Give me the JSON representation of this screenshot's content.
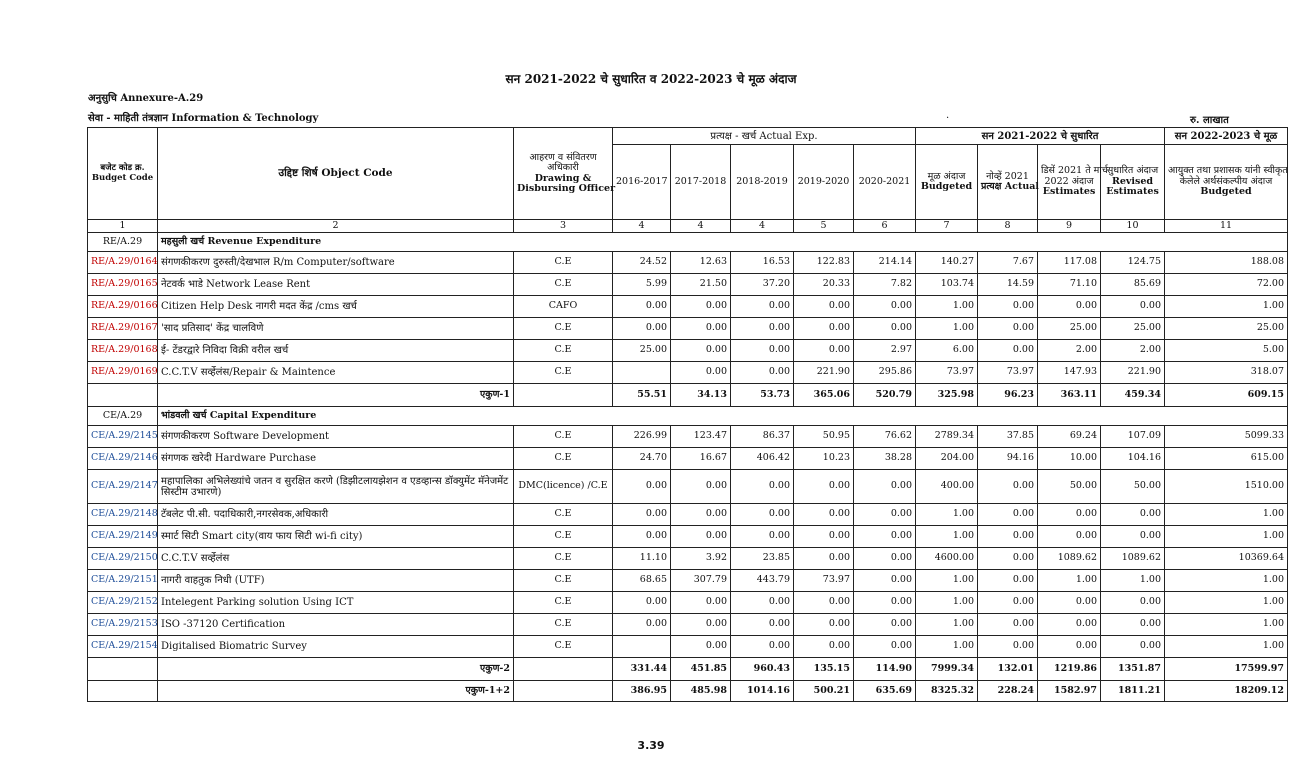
{
  "title": "सन 2021-2022 चे सुधारित व 2022-2023 चे मूळ अंदाज",
  "annexure": "अनुसुचि Annexure-A.29",
  "seva": "सेवा - माहिती तंत्रज्ञान Information & Technology",
  "dot": ".",
  "unit": "रु. लाखात",
  "headers": {
    "budget_code_mr": "बजेट कोड क्र.",
    "budget_code_en": "Budget Code",
    "object_code": "उद्दिष्ट शिर्ष Object Code",
    "ddo_1": "आहरण व संवितरण",
    "ddo_2": "अधिकारी",
    "ddo_3": "Drawing &",
    "ddo_4": "Disbursing  Officer",
    "actual_exp": "प्रत्यक्ष - खर्च Actual Exp.",
    "revised_group": "सन 2021-2022 चे सुधारित",
    "original_group": "सन 2022-2023 चे मूळ",
    "y2016": "2016-2017",
    "y2017": "2017-2018",
    "y2018": "2018-2019",
    "y2019": "2019-2020",
    "y2020": "2020-2021",
    "budgeted_1": "मूळ अंदाज",
    "budgeted_2": "Budgeted",
    "nov_1": "नोव्हें 2021",
    "nov_2": "प्रत्यक्ष  Actual",
    "dec_1": "डिसें 2021 ते मार्च",
    "dec_2": "2022 अंदाज",
    "dec_3": "Estimates",
    "rev_1": "सुधारित अंदाज",
    "rev_2": "Revised",
    "rev_3": "Estimates",
    "orig_1": "आयुक्त तथा प्रशासक यांनी स्वीकृत",
    "orig_2": "केलेले अर्थसंकल्पीय अंदाज",
    "orig_3": "Budgeted",
    "colnums": [
      "1",
      "2",
      "3",
      "4",
      "4",
      "4",
      "5",
      "6",
      "7",
      "8",
      "9",
      "10",
      "11"
    ]
  },
  "revenue": {
    "code": "RE/A.29",
    "title": "महसुली खर्च Revenue Expenditure",
    "rows": [
      {
        "code": "RE/A.29/0164",
        "desc": "संगणकीकरण दुरुस्ती/देखभाल R/m Computer/software",
        "ddo": "C.E",
        "v": [
          "24.52",
          "12.63",
          "16.53",
          "122.83",
          "214.14",
          "140.27",
          "7.67",
          "117.08",
          "124.75",
          "188.08"
        ]
      },
      {
        "code": "RE/A.29/0165",
        "desc": "नेटवर्क भाडे Network Lease Rent",
        "ddo": "C.E",
        "v": [
          "5.99",
          "21.50",
          "37.20",
          "20.33",
          "7.82",
          "103.74",
          "14.59",
          "71.10",
          "85.69",
          "72.00"
        ]
      },
      {
        "code": "RE/A.29/0166",
        "desc": "Citizen Help Desk नागरी मदत केंद्र /cms खर्च",
        "ddo": "CAFO",
        "v": [
          "0.00",
          "0.00",
          "0.00",
          "0.00",
          "0.00",
          "1.00",
          "0.00",
          "0.00",
          "0.00",
          "1.00"
        ]
      },
      {
        "code": "RE/A.29/0167",
        "desc": "'साद प्रतिसाद' केंद्र चालविणे",
        "ddo": "C.E",
        "v": [
          "0.00",
          "0.00",
          "0.00",
          "0.00",
          "0.00",
          "1.00",
          "0.00",
          "25.00",
          "25.00",
          "25.00"
        ]
      },
      {
        "code": "RE/A.29/0168",
        "desc": "ई- टेंडरद्वारे निविदा विक्री वरील खर्च",
        "ddo": "C.E",
        "v": [
          "25.00",
          "0.00",
          "0.00",
          "0.00",
          "2.97",
          "6.00",
          "0.00",
          "2.00",
          "2.00",
          "5.00"
        ]
      },
      {
        "code": "RE/A.29/0169",
        "desc": "C.C.T.V सर्व्हेलंस/Repair & Maintence",
        "ddo": "C.E",
        "v": [
          "",
          "0.00",
          "0.00",
          "221.90",
          "295.86",
          "73.97",
          "73.97",
          "147.93",
          "221.90",
          "318.07"
        ]
      }
    ],
    "total_label": "एकुण-1",
    "total": [
      "55.51",
      "34.13",
      "53.73",
      "365.06",
      "520.79",
      "325.98",
      "96.23",
      "363.11",
      "459.34",
      "609.15"
    ]
  },
  "capital": {
    "code": "CE/A.29",
    "title": "भांडवली खर्च Capital Expenditure",
    "rows": [
      {
        "code": "CE/A.29/2145",
        "desc": "संगणकीकरण Software Development",
        "ddo": "C.E",
        "v": [
          "226.99",
          "123.47",
          "86.37",
          "50.95",
          "76.62",
          "2789.34",
          "37.85",
          "69.24",
          "107.09",
          "5099.33"
        ]
      },
      {
        "code": "CE/A.29/2146",
        "desc": "संगणक खरेदी Hardware Purchase",
        "ddo": "C.E",
        "v": [
          "24.70",
          "16.67",
          "406.42",
          "10.23",
          "38.28",
          "204.00",
          "94.16",
          "10.00",
          "104.16",
          "615.00"
        ]
      },
      {
        "code": "CE/A.29/2147",
        "desc": "महापालिका अभिलेख्यांचे जतन व सुरक्षित करणे (डिझीटलायझेशन व एडव्हान्स डॉक्युमेंट मॅनेजमेंट सिस्टीम उभारणे)",
        "ddo": "DMC(licence) /C.E",
        "v": [
          "0.00",
          "0.00",
          "0.00",
          "0.00",
          "0.00",
          "400.00",
          "0.00",
          "50.00",
          "50.00",
          "1510.00"
        ]
      },
      {
        "code": "CE/A.29/2148",
        "desc": "टॅबलेट पी.सी. पदाधिकारी,नगरसेवक,अधिकारी",
        "ddo": "C.E",
        "v": [
          "0.00",
          "0.00",
          "0.00",
          "0.00",
          "0.00",
          "1.00",
          "0.00",
          "0.00",
          "0.00",
          "1.00"
        ]
      },
      {
        "code": "CE/A.29/2149",
        "desc": "स्मार्ट सिटी  Smart city(वाय फाय सिटी wi-fi city)",
        "ddo": "C.E",
        "v": [
          "0.00",
          "0.00",
          "0.00",
          "0.00",
          "0.00",
          "1.00",
          "0.00",
          "0.00",
          "0.00",
          "1.00"
        ]
      },
      {
        "code": "CE/A.29/2150",
        "desc": "C.C.T.V सर्व्हेलंस",
        "ddo": "C.E",
        "v": [
          "11.10",
          "3.92",
          "23.85",
          "0.00",
          "0.00",
          "4600.00",
          "0.00",
          "1089.62",
          "1089.62",
          "10369.64"
        ]
      },
      {
        "code": "CE/A.29/2151",
        "desc": "नागरी वाहतुक निधी (UTF)",
        "ddo": "C.E",
        "v": [
          "68.65",
          "307.79",
          "443.79",
          "73.97",
          "0.00",
          "1.00",
          "0.00",
          "1.00",
          "1.00",
          "1.00"
        ]
      },
      {
        "code": "CE/A.29/2152",
        "desc": "Intelegent Parking solution Using ICT",
        "ddo": "C.E",
        "v": [
          "0.00",
          "0.00",
          "0.00",
          "0.00",
          "0.00",
          "1.00",
          "0.00",
          "0.00",
          "0.00",
          "1.00"
        ]
      },
      {
        "code": "CE/A.29/2153",
        "desc": "ISO -37120 Certification",
        "ddo": "C.E",
        "v": [
          "0.00",
          "0.00",
          "0.00",
          "0.00",
          "0.00",
          "1.00",
          "0.00",
          "0.00",
          "0.00",
          "1.00"
        ]
      },
      {
        "code": "CE/A.29/2154",
        "desc": "Digitalised Biomatric Survey",
        "ddo": "C.E",
        "v": [
          "",
          "0.00",
          "0.00",
          "0.00",
          "0.00",
          "1.00",
          "0.00",
          "0.00",
          "0.00",
          "1.00"
        ]
      }
    ],
    "total_label": "एकुण-2",
    "total": [
      "331.44",
      "451.85",
      "960.43",
      "135.15",
      "114.90",
      "7999.34",
      "132.01",
      "1219.86",
      "1351.87",
      "17599.97"
    ]
  },
  "grand": {
    "label": "एकुण-1+2",
    "total": [
      "386.95",
      "485.98",
      "1014.16",
      "500.21",
      "635.69",
      "8325.32",
      "228.24",
      "1582.97",
      "1811.21",
      "18209.12"
    ]
  },
  "page_number": "3.39"
}
